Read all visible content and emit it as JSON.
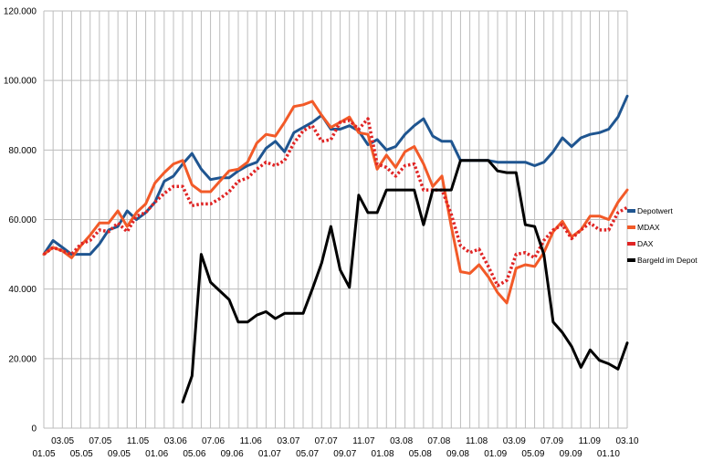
{
  "chart_data": {
    "type": "line",
    "title": "",
    "xlabel": "",
    "ylabel": "",
    "ylim": [
      0,
      120000
    ],
    "grid": true,
    "legend_position": "right",
    "y_ticks": [
      "0",
      "20.000",
      "40.000",
      "60.000",
      "80.000",
      "100.000",
      "120.000"
    ],
    "x_ticks_upper": [
      "03.05",
      "07.05",
      "11.05",
      "03.06",
      "07.06",
      "11.06",
      "03.07",
      "07.07",
      "11.07",
      "03.08",
      "07.08",
      "11.08",
      "03.09",
      "07.09",
      "11.09",
      "03.10"
    ],
    "x_ticks_lower": [
      "01.05",
      "05.05",
      "09.05",
      "01.06",
      "05.06",
      "09.06",
      "01.07",
      "05.07",
      "09.07",
      "01.08",
      "05.08",
      "09.08",
      "01.09",
      "05.09",
      "09.09",
      "01.10"
    ],
    "series": [
      {
        "name": "Depotwert",
        "color": "#1f5590",
        "style": "solid",
        "values": [
          50000,
          54000,
          52000,
          50000,
          50000,
          50000,
          53000,
          57000,
          58000,
          62500,
          60000,
          62000,
          65000,
          71000,
          72500,
          76000,
          79000,
          74500,
          71500,
          72000,
          72000,
          74000,
          75500,
          76500,
          80500,
          82500,
          79500,
          85000,
          86500,
          88000,
          90000,
          86000,
          86000,
          87000,
          85500,
          81500,
          83000,
          80000,
          81000,
          84500,
          87000,
          89000,
          84000,
          82500,
          82500,
          77000,
          77000,
          77000,
          77000,
          76500,
          76500,
          76500,
          76500,
          75500,
          76500,
          79500,
          83500,
          81000,
          83500,
          84500,
          85000,
          86000,
          89500,
          95500
        ]
      },
      {
        "name": "MDAX",
        "color": "#f25a28",
        "style": "solid",
        "values": [
          50000,
          52000,
          51000,
          49000,
          52500,
          55500,
          59000,
          59000,
          62500,
          58000,
          62000,
          64500,
          70500,
          73500,
          76000,
          77000,
          70000,
          68000,
          68000,
          71000,
          74000,
          74500,
          76500,
          82000,
          84500,
          84000,
          88000,
          92500,
          93000,
          94000,
          90000,
          86500,
          88000,
          89500,
          85000,
          84500,
          74500,
          78500,
          75000,
          79500,
          81000,
          76000,
          69500,
          72500,
          58000,
          45000,
          44500,
          47000,
          43500,
          39000,
          36000,
          46000,
          47000,
          46500,
          50500,
          56500,
          59500,
          55000,
          57000,
          61000,
          61000,
          60000,
          65000,
          68500
        ]
      },
      {
        "name": "DAX",
        "color": "#e02424",
        "style": "dotted",
        "values": [
          50000,
          52000,
          51000,
          50000,
          53000,
          54000,
          57000,
          56500,
          59000,
          56500,
          61000,
          62000,
          65000,
          67500,
          69500,
          69500,
          64000,
          64500,
          64500,
          66000,
          68000,
          71000,
          72000,
          74500,
          76500,
          75500,
          77000,
          82000,
          85500,
          87000,
          82500,
          83000,
          88000,
          88500,
          86000,
          89000,
          76000,
          75000,
          72500,
          75500,
          76000,
          68500,
          68500,
          68500,
          61500,
          52500,
          50500,
          51500,
          46500,
          41000,
          42500,
          50000,
          50500,
          49000,
          54000,
          57000,
          58500,
          54500,
          57000,
          59000,
          57000,
          57000,
          62000,
          63500
        ]
      },
      {
        "name": "Bargeld im Depot",
        "color": "#000000",
        "style": "solid",
        "values": [
          null,
          null,
          null,
          null,
          null,
          null,
          null,
          null,
          null,
          null,
          null,
          null,
          null,
          null,
          null,
          7500,
          15000,
          50000,
          42000,
          39500,
          37000,
          30500,
          30500,
          32500,
          33500,
          31500,
          33000,
          33000,
          33000,
          40000,
          47500,
          58000,
          45500,
          40500,
          67000,
          62000,
          62000,
          68500,
          68500,
          68500,
          68500,
          58500,
          68500,
          68500,
          68500,
          77000,
          77000,
          77000,
          77000,
          74000,
          73500,
          73500,
          58500,
          58000,
          50000,
          30500,
          27500,
          23500,
          17500,
          22500,
          19500,
          18500,
          17000,
          24500
        ]
      }
    ]
  }
}
